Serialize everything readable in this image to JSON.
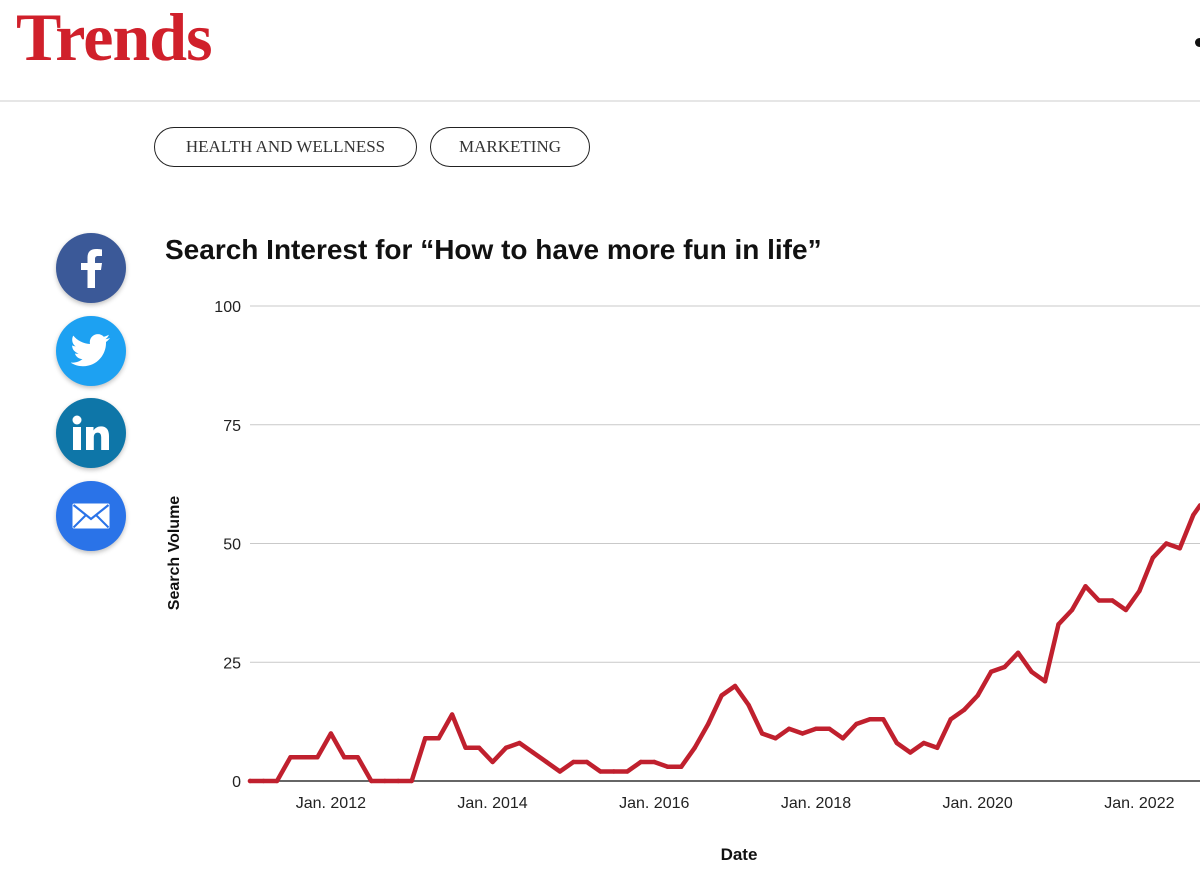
{
  "header": {
    "logo": "Trends"
  },
  "tags": [
    {
      "label": "HEALTH AND WELLNESS"
    },
    {
      "label": "MARKETING"
    }
  ],
  "share": [
    {
      "network": "facebook",
      "icon": "facebook-icon",
      "color": "#3b5998"
    },
    {
      "network": "twitter",
      "icon": "twitter-icon",
      "color": "#1da1f2"
    },
    {
      "network": "linkedin",
      "icon": "linkedin-icon",
      "color": "#0e76a8"
    },
    {
      "network": "email",
      "icon": "mail-icon",
      "color": "#2a73e8"
    }
  ],
  "chart_data": {
    "type": "line",
    "title": "Search Interest for “How to have more fun in life”",
    "xlabel": "Date",
    "ylabel": "Search Volume",
    "yticks": [
      "0",
      "25",
      "50",
      "75",
      "100"
    ],
    "ylim": [
      0,
      100
    ],
    "xticks": [
      "Jan. 2012",
      "Jan. 2014",
      "Jan. 2016",
      "Jan. 2018",
      "Jan. 2020",
      "Jan. 2022"
    ],
    "xlim": [
      "2011-01",
      "2022-10"
    ],
    "grid": true,
    "color": "#c0202e",
    "series": [
      {
        "x": [
          "2011-01",
          "2011-03",
          "2011-05",
          "2011-07",
          "2011-09",
          "2011-11",
          "2012-01",
          "2012-03",
          "2012-05",
          "2012-07",
          "2012-09",
          "2012-11",
          "2013-01",
          "2013-03",
          "2013-05",
          "2013-07",
          "2013-09",
          "2013-11",
          "2014-01",
          "2014-03",
          "2014-05",
          "2014-07",
          "2014-09",
          "2014-11",
          "2015-01",
          "2015-03",
          "2015-05",
          "2015-07",
          "2015-09",
          "2015-11",
          "2016-01",
          "2016-03",
          "2016-05",
          "2016-07",
          "2016-09",
          "2016-11",
          "2017-01",
          "2017-03",
          "2017-05",
          "2017-07",
          "2017-09",
          "2017-11",
          "2018-01",
          "2018-03",
          "2018-05",
          "2018-07",
          "2018-09",
          "2018-11",
          "2019-01",
          "2019-03",
          "2019-05",
          "2019-07",
          "2019-09",
          "2019-11",
          "2020-01",
          "2020-03",
          "2020-05",
          "2020-07",
          "2020-09",
          "2020-11",
          "2021-01",
          "2021-03",
          "2021-05",
          "2021-07",
          "2021-09",
          "2021-11",
          "2022-01",
          "2022-03",
          "2022-05",
          "2022-07",
          "2022-09",
          "2022-10"
        ],
        "y": [
          0,
          0,
          0,
          5,
          5,
          5,
          10,
          5,
          5,
          0,
          0,
          0,
          0,
          9,
          9,
          14,
          7,
          7,
          4,
          7,
          8,
          6,
          4,
          2,
          4,
          4,
          2,
          2,
          2,
          4,
          4,
          3,
          3,
          7,
          12,
          18,
          20,
          16,
          10,
          9,
          11,
          10,
          11,
          11,
          9,
          12,
          13,
          13,
          8,
          6,
          8,
          7,
          13,
          15,
          18,
          23,
          24,
          27,
          23,
          21,
          33,
          36,
          41,
          38,
          38,
          36,
          40,
          47,
          50,
          49,
          56,
          58
        ]
      }
    ]
  }
}
